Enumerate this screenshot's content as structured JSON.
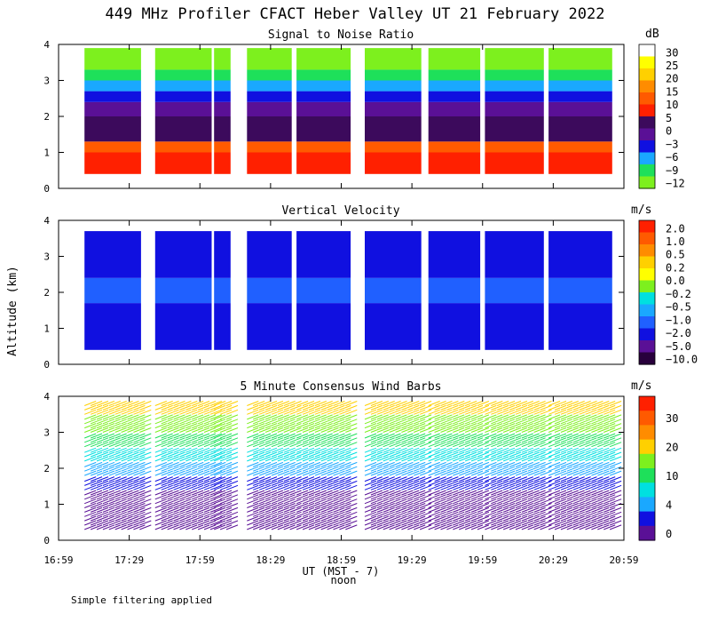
{
  "title": "449 MHz Profiler CFACT Heber Valley UT 21 February 2022",
  "y_axis_label": "Altitude (km)",
  "x_axis_label": "UT  (MST - 7)",
  "x_axis_sublabel": "noon",
  "footnote": "Simple filtering applied",
  "colors": {
    "white": "#ffffff",
    "yellow": "#ffff00",
    "gold": "#ffd000",
    "orange": "#ff8c00",
    "dark_orange": "#ff5a00",
    "red": "#ff2000",
    "purple_dark": "#3c0a5c",
    "purple": "#5a1096",
    "blue": "#1010e0",
    "blue_mid": "#2060ff",
    "light_blue": "#1aa8ff",
    "cyan": "#00e0e0",
    "green": "#1ee05a",
    "lime": "#7df01e",
    "dark_purple": "#28003c"
  },
  "panels": [
    {
      "title": "Signal to Noise Ratio",
      "colorbar_unit": "dB",
      "colorbar_labels": [
        "30",
        "25",
        "20",
        "15",
        "10",
        "5",
        "0",
        "−3",
        "−6",
        "−9",
        "−12"
      ],
      "colorbar_colors": [
        "#ffffff",
        "#ffff00",
        "#ffd000",
        "#ff8c00",
        "#ff5a00",
        "#ff2000",
        "#3c0a5c",
        "#5a1096",
        "#1010e0",
        "#1aa8ff",
        "#1ee05a",
        "#7df01e"
      ]
    },
    {
      "title": "Vertical Velocity",
      "colorbar_unit": "m/s",
      "colorbar_labels": [
        "2.0",
        "1.0",
        "0.5",
        "0.2",
        "0.0",
        "−0.2",
        "−0.5",
        "−1.0",
        "−2.0",
        "−5.0",
        "−10.0"
      ],
      "colorbar_colors": [
        "#ff2000",
        "#ff5a00",
        "#ff8c00",
        "#ffd000",
        "#ffff00",
        "#7df01e",
        "#00e0e0",
        "#1aa8ff",
        "#2060ff",
        "#1010e0",
        "#5a1096",
        "#28003c"
      ]
    },
    {
      "title": "5 Minute Consensus Wind Barbs",
      "colorbar_unit": "m/s",
      "colorbar_labels": [
        "30",
        "20",
        "10",
        "4",
        "0"
      ],
      "colorbar_colors": [
        "#ff2000",
        "#ff5a00",
        "#ff8c00",
        "#ffd000",
        "#7df01e",
        "#1ee05a",
        "#00e0e0",
        "#1aa8ff",
        "#1010e0",
        "#5a1096"
      ]
    }
  ],
  "chart_data": {
    "type": "heatmap",
    "title": "449 MHz Profiler CFACT Heber Valley UT 21 February 2022",
    "xlabel": "UT  (MST - 7)",
    "ylabel": "Altitude (km)",
    "x_tick_labels": [
      "16:59",
      "17:29",
      "17:59",
      "18:29",
      "18:59",
      "19:29",
      "19:59",
      "20:29",
      "20:59"
    ],
    "x_range_minutes_ut": [
      1019,
      1259
    ],
    "y_tick_labels": [
      "0",
      "1",
      "2",
      "3",
      "4"
    ],
    "ylim_km": [
      0,
      4
    ],
    "data_blocks_ut": [
      [
        "17:10",
        "17:34"
      ],
      [
        "17:40",
        "18:04"
      ],
      [
        "18:05",
        "18:12"
      ],
      [
        "18:19",
        "18:38"
      ],
      [
        "18:40",
        "19:03"
      ],
      [
        "19:09",
        "19:33"
      ],
      [
        "19:36",
        "19:58"
      ],
      [
        "20:00",
        "20:25"
      ],
      [
        "20:27",
        "20:54"
      ]
    ],
    "series": [
      {
        "name": "Signal to Noise Ratio (dB)",
        "profile_bands": [
          {
            "from_km": 0.4,
            "to_km": 1.0,
            "color": "red"
          },
          {
            "from_km": 1.0,
            "to_km": 1.3,
            "color": "dark_orange"
          },
          {
            "from_km": 1.3,
            "to_km": 2.0,
            "color": "purple_dark"
          },
          {
            "from_km": 2.0,
            "to_km": 2.4,
            "color": "purple"
          },
          {
            "from_km": 2.4,
            "to_km": 2.7,
            "color": "blue"
          },
          {
            "from_km": 2.7,
            "to_km": 3.0,
            "color": "light_blue"
          },
          {
            "from_km": 3.0,
            "to_km": 3.3,
            "color": "green"
          },
          {
            "from_km": 3.3,
            "to_km": 3.9,
            "color": "lime"
          }
        ]
      },
      {
        "name": "Vertical Velocity (m/s)",
        "profile_bands": [
          {
            "from_km": 0.4,
            "to_km": 1.7,
            "color": "blue"
          },
          {
            "from_km": 1.7,
            "to_km": 2.4,
            "color": "blue_mid"
          },
          {
            "from_km": 2.4,
            "to_km": 3.7,
            "color": "blue"
          }
        ]
      },
      {
        "name": "5 Minute Consensus Wind Speed (m/s)",
        "profile_bands": [
          {
            "from_km": 0.3,
            "to_km": 1.4,
            "color": "purple"
          },
          {
            "from_km": 1.4,
            "to_km": 1.8,
            "color": "blue"
          },
          {
            "from_km": 1.8,
            "to_km": 2.2,
            "color": "light_blue"
          },
          {
            "from_km": 2.2,
            "to_km": 2.6,
            "color": "cyan"
          },
          {
            "from_km": 2.6,
            "to_km": 3.0,
            "color": "green"
          },
          {
            "from_km": 3.0,
            "to_km": 3.5,
            "color": "lime"
          },
          {
            "from_km": 3.5,
            "to_km": 3.8,
            "color": "gold"
          }
        ]
      }
    ]
  }
}
